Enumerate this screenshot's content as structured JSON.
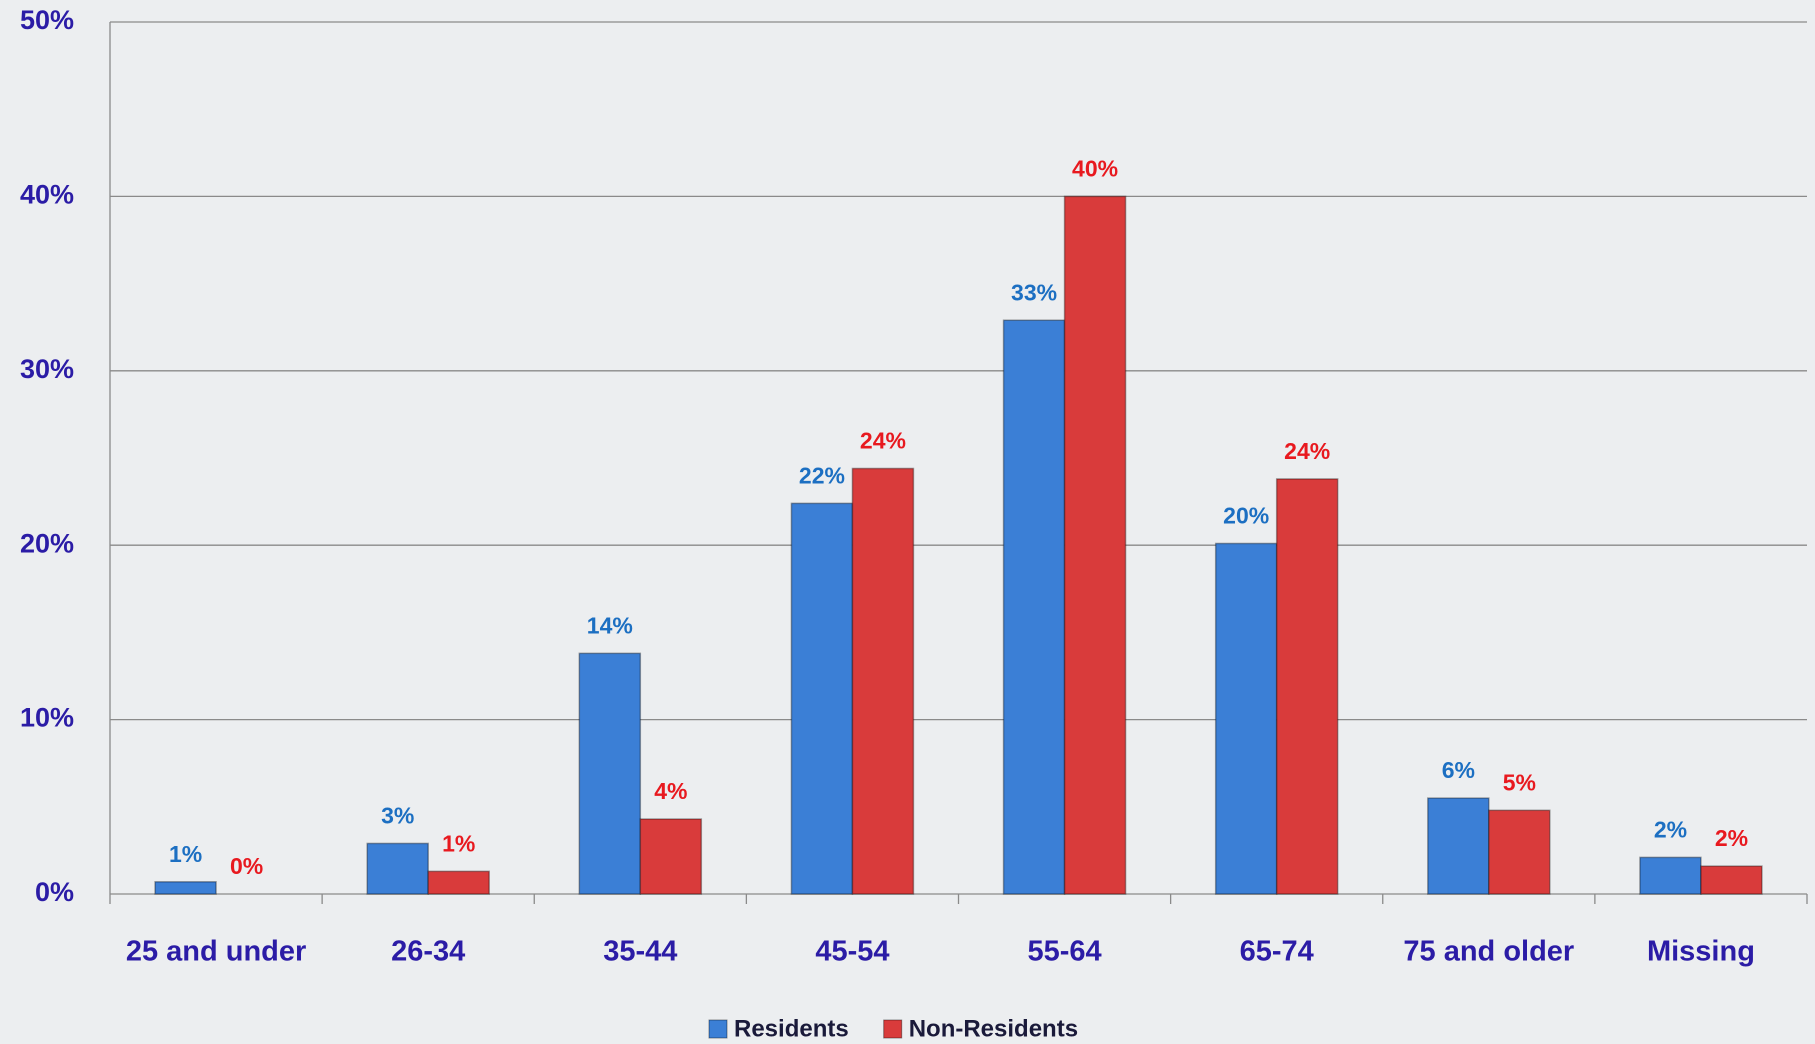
{
  "chart_data": {
    "type": "bar",
    "categories": [
      "25 and under",
      "26-34",
      "35-44",
      "45-54",
      "55-64",
      "65-74",
      "75 and older",
      "Missing"
    ],
    "series": [
      {
        "name": "Residents",
        "color": "#3b7fd6",
        "label_color": "#1c6fc2",
        "values": [
          0.7,
          2.9,
          13.8,
          22.4,
          32.9,
          20.1,
          5.5,
          2.1
        ],
        "value_labels": [
          "1%",
          "3%",
          "14%",
          "22%",
          "33%",
          "20%",
          "6%",
          "2%"
        ]
      },
      {
        "name": "Non-Residents",
        "color": "#d93b3b",
        "label_color": "#e8191f",
        "values": [
          0,
          1.3,
          4.3,
          24.4,
          40.0,
          23.8,
          4.8,
          1.6
        ],
        "value_labels": [
          "0%",
          "1%",
          "4%",
          "24%",
          "40%",
          "24%",
          "5%",
          "2%"
        ]
      }
    ],
    "ylim": [
      0,
      50
    ],
    "yticks": [
      {
        "value": 0,
        "label": "0%"
      },
      {
        "value": 10,
        "label": "10%"
      },
      {
        "value": 20,
        "label": "20%"
      },
      {
        "value": 30,
        "label": "30%"
      },
      {
        "value": 40,
        "label": "40%"
      },
      {
        "value": 50,
        "label": "50%"
      }
    ],
    "grid": true,
    "legend": "bottom"
  }
}
